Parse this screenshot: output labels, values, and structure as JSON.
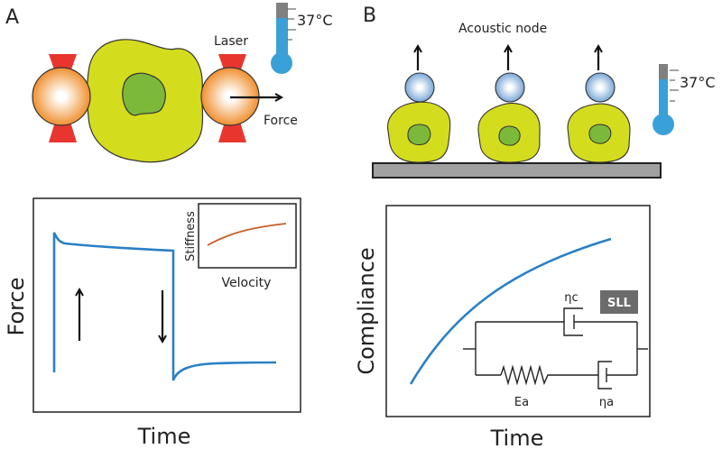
{
  "panel_a": {
    "label": "A",
    "laser_label": "Laser",
    "force_label": "Force",
    "temperature": "37°C",
    "chart": {
      "ylabel": "Force",
      "xlabel": "Time",
      "inset": {
        "ylabel": "Stiffness",
        "xlabel": "Velocity"
      }
    }
  },
  "panel_b": {
    "label": "B",
    "acoustic_label": "Acoustic node",
    "temperature": "37°C",
    "chart": {
      "ylabel": "Compliance",
      "xlabel": "Time",
      "model_badge": "SLL",
      "eta_c": "ηc",
      "e_a": "Ea",
      "eta_a": "ηa"
    }
  },
  "colors": {
    "curve": "#2a80c6",
    "inset_curve": "#c8602a",
    "cell": "#d4dc1e",
    "nucleus": "#7cb83a",
    "laser": "#e8362e",
    "bead_a": "#f09030",
    "bead_b": "#7aa8d8",
    "thermometer": "#3aa0d8",
    "substrate": "#a0a0a0",
    "badge": "#6b6b6b"
  }
}
